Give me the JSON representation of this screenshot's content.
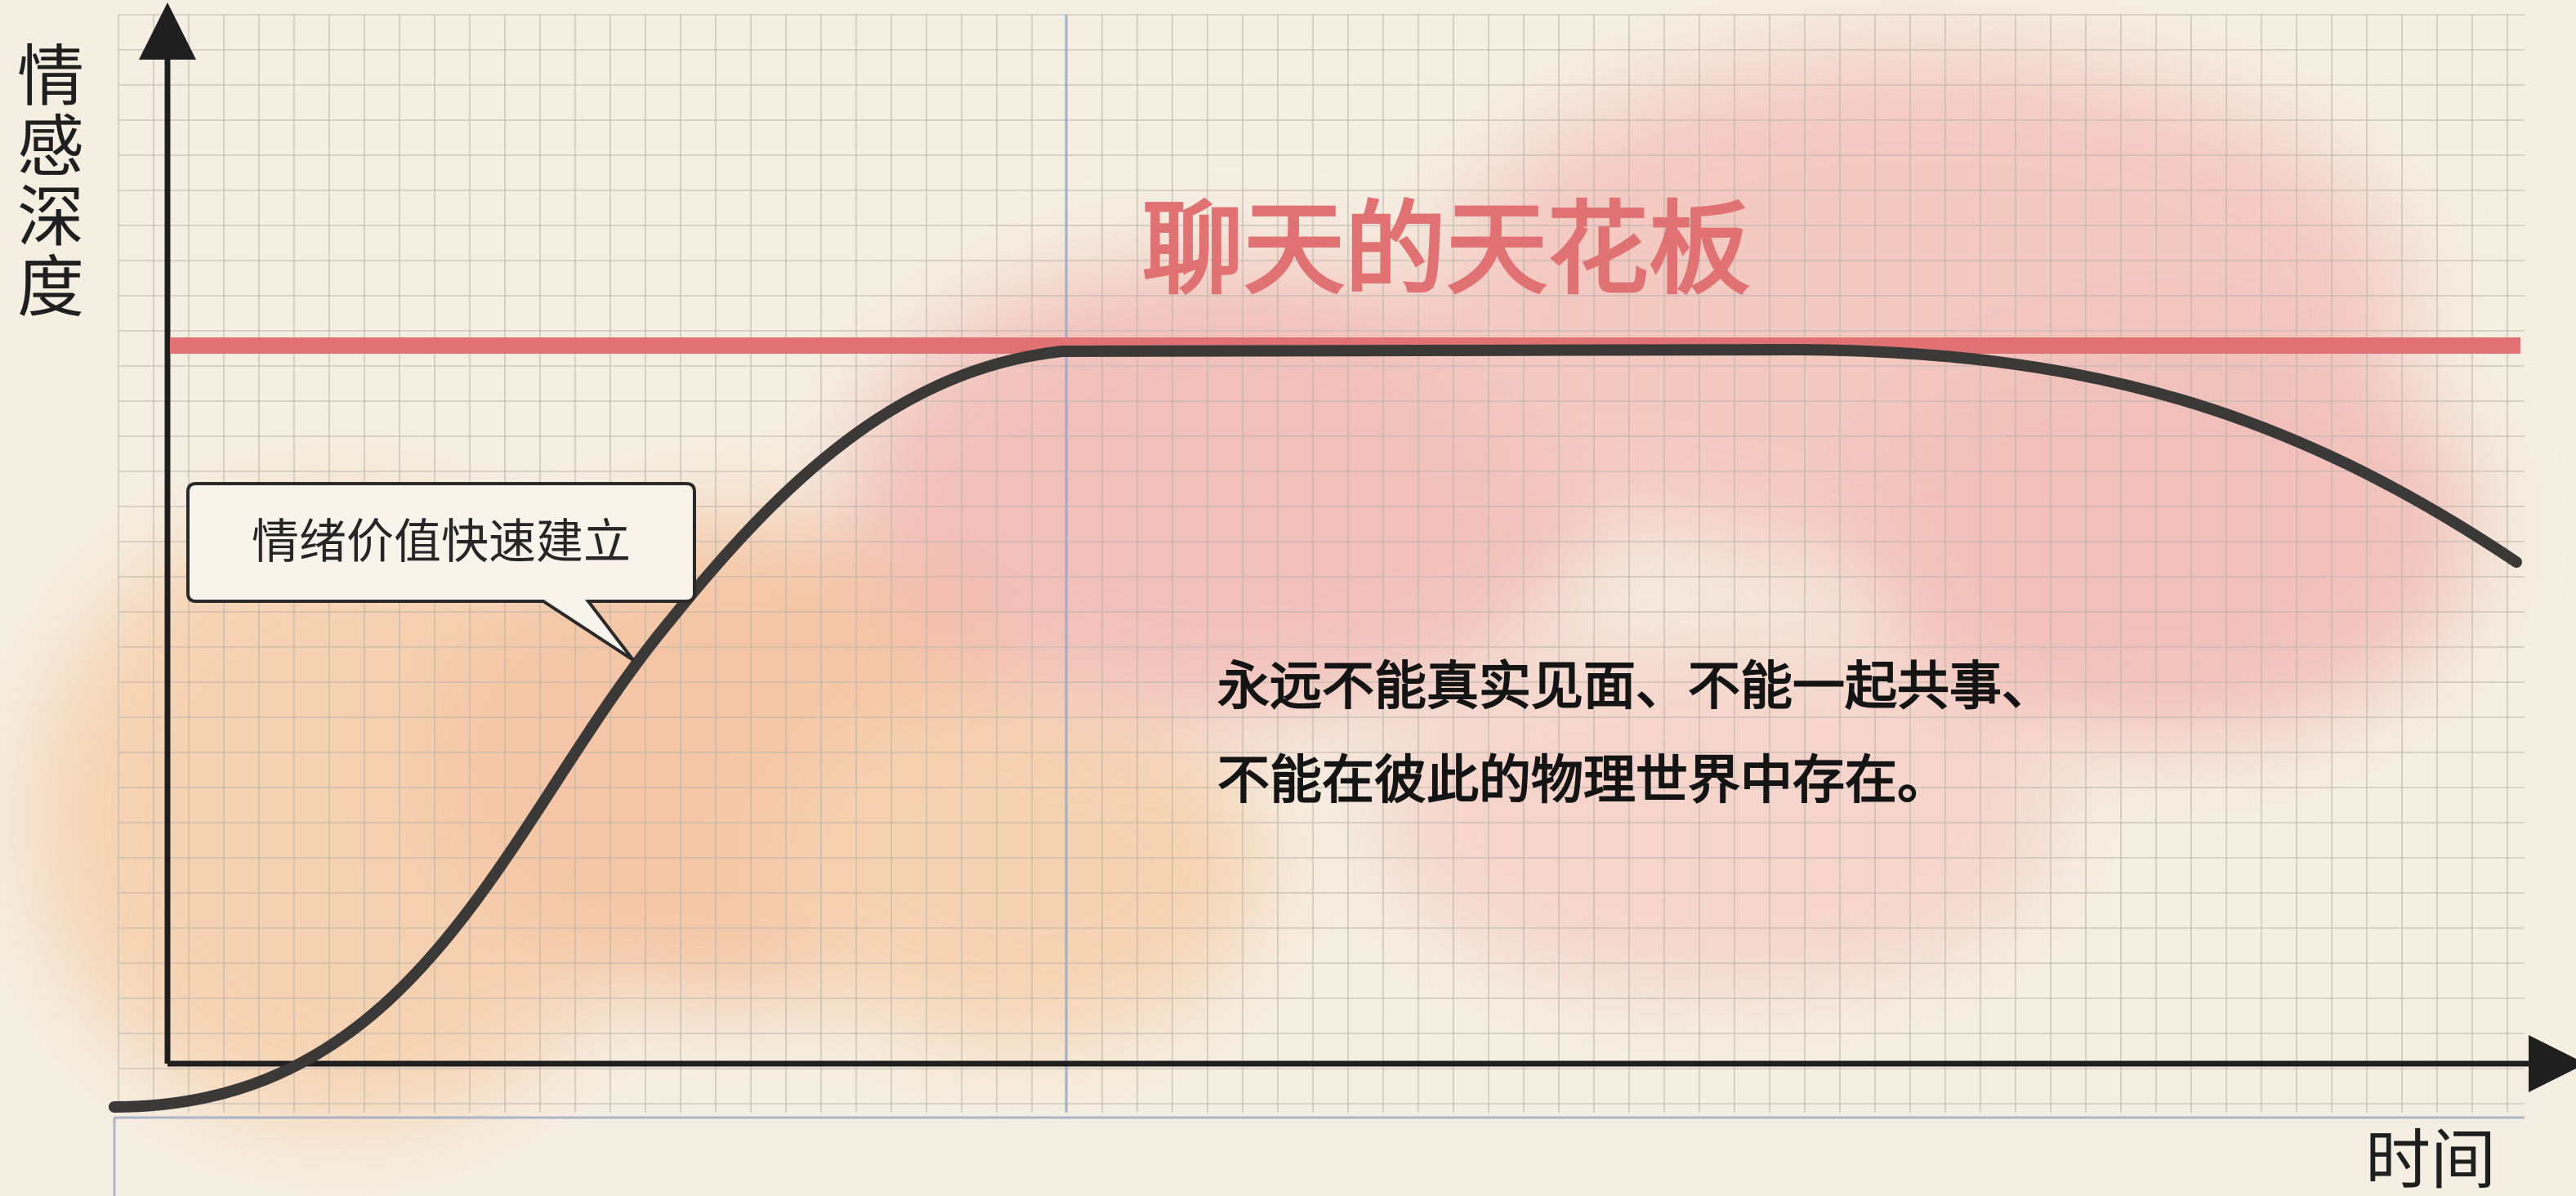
{
  "axes": {
    "y_label": [
      "情",
      "感",
      "深",
      "度"
    ],
    "x_label": "时间"
  },
  "ceiling": {
    "label": "聊天的天花板",
    "color": "#e07273"
  },
  "callout": {
    "text": "情绪价值快速建立"
  },
  "note": {
    "line1": "永远不能真实见面、不能一起共事、",
    "line2": "不能在彼此的物理世界中存在。"
  },
  "curve": {
    "color": "#3b3838"
  },
  "colors": {
    "background": "#f5efe3",
    "grid": "#b9b4ab",
    "grid_accent": "#9aa8c4",
    "peach_wash": "#f6c9a2",
    "pink_wash": "#f0a2a0"
  }
}
